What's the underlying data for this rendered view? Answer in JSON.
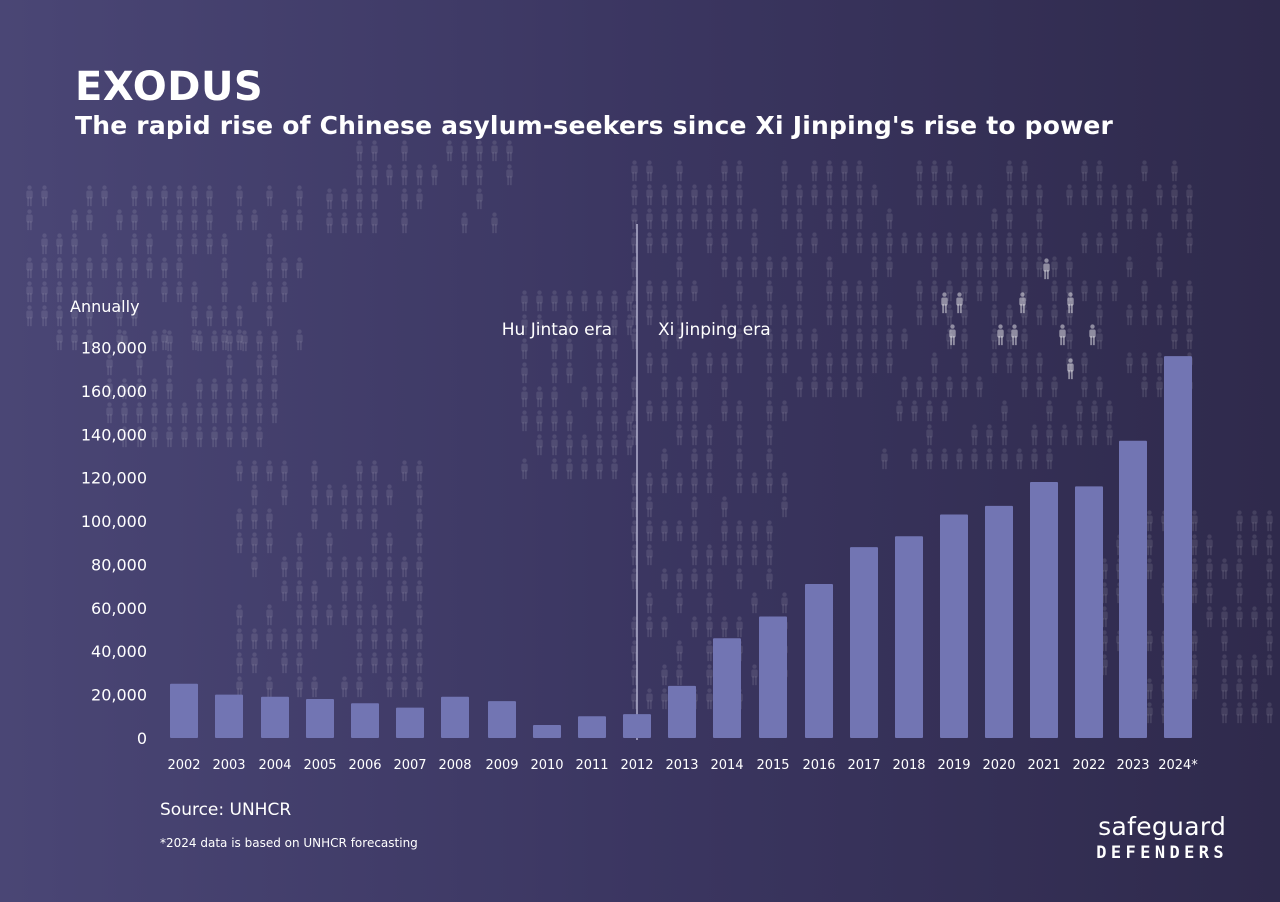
{
  "header": {
    "title": "EXODUS",
    "subtitle": "The rapid rise of Chinese asylum-seekers since Xi Jinping's rise to power"
  },
  "footer": {
    "source": "Source: UNHCR",
    "footnote": "*2024 data is based on UNHCR forecasting"
  },
  "logo": {
    "top": "safeguard",
    "bottom": "DEFENDERS"
  },
  "colors": {
    "bar": "#7275b3",
    "divider": "#b3b1cf",
    "figure": "#ffffff"
  },
  "chart_data": {
    "type": "bar",
    "title": "EXODUS",
    "subtitle": "The rapid rise of Chinese asylum-seekers since Xi Jinping's rise to power",
    "ylabel": "Annually",
    "xlabel": "",
    "categories": [
      "2002",
      "2003",
      "2004",
      "2005",
      "2006",
      "2007",
      "2008",
      "2009",
      "2010",
      "2011",
      "2012",
      "2013",
      "2014",
      "2015",
      "2016",
      "2017",
      "2018",
      "2019",
      "2020",
      "2021",
      "2022",
      "2023",
      "2024*"
    ],
    "values": [
      25000,
      20000,
      19000,
      18000,
      16000,
      14000,
      19000,
      17000,
      6000,
      10000,
      11000,
      24000,
      46000,
      56000,
      71000,
      88000,
      93000,
      103000,
      107000,
      118000,
      116000,
      137000,
      176000
    ],
    "ylim": [
      0,
      180000
    ],
    "yticks": [
      0,
      20000,
      40000,
      60000,
      80000,
      100000,
      120000,
      140000,
      160000,
      180000
    ],
    "ytick_labels": [
      "0",
      "20,000",
      "40,000",
      "60,000",
      "80,000",
      "100,000",
      "120,000",
      "140,000",
      "160,000",
      "180,000"
    ],
    "grid": false,
    "annotations": [
      {
        "text": "Hu Jintao era",
        "after_category": "2012",
        "side": "left"
      },
      {
        "text": "Xi Jinping era",
        "after_category": "2012",
        "side": "right"
      }
    ]
  }
}
